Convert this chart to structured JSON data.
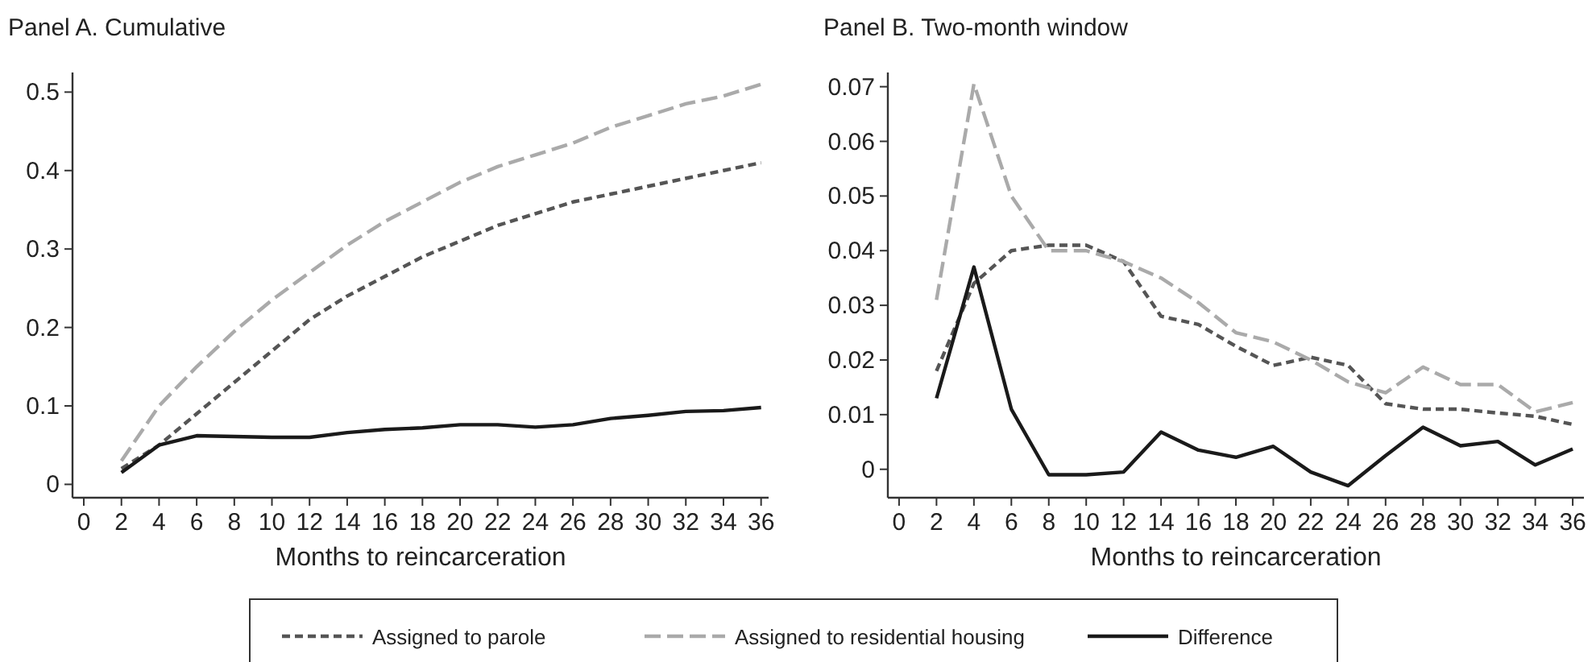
{
  "chart_data": [
    {
      "type": "line",
      "title": "Panel A. Cumulative",
      "xlabel": "Months to reincarceration",
      "x": [
        2,
        4,
        6,
        8,
        10,
        12,
        14,
        16,
        18,
        20,
        22,
        24,
        26,
        28,
        30,
        32,
        34,
        36
      ],
      "series": [
        {
          "name": "Assigned to parole",
          "color": "#555555",
          "line_style": "dashed",
          "values": [
            0.02,
            0.05,
            0.09,
            0.13,
            0.17,
            0.21,
            0.24,
            0.265,
            0.29,
            0.31,
            0.33,
            0.345,
            0.36,
            0.37,
            0.38,
            0.39,
            0.4,
            0.41
          ]
        },
        {
          "name": "Assigned to residential housing",
          "color": "#aaaaaa",
          "line_style": "dashed",
          "values": [
            0.03,
            0.1,
            0.15,
            0.195,
            0.235,
            0.27,
            0.305,
            0.335,
            0.36,
            0.385,
            0.405,
            0.42,
            0.435,
            0.455,
            0.47,
            0.485,
            0.495,
            0.51
          ]
        },
        {
          "name": "Difference",
          "color": "#1a1a1a",
          "line_style": "solid",
          "values": [
            0.015,
            0.05,
            0.062,
            0.061,
            0.06,
            0.06,
            0.066,
            0.07,
            0.072,
            0.076,
            0.076,
            0.073,
            0.076,
            0.084,
            0.088,
            0.093,
            0.094,
            0.098
          ]
        }
      ],
      "xlim": [
        -0.6,
        36.4
      ],
      "ylim": [
        -0.017,
        0.525
      ],
      "xticks": [
        0,
        2,
        4,
        6,
        8,
        10,
        12,
        14,
        16,
        18,
        20,
        22,
        24,
        26,
        28,
        30,
        32,
        34,
        36
      ],
      "yticks": [
        0,
        0.1,
        0.2,
        0.3,
        0.4,
        0.5
      ],
      "grid": false,
      "legend": "bottom"
    },
    {
      "type": "line",
      "title": "Panel B. Two-month window",
      "xlabel": "Months to reincarceration",
      "x": [
        2,
        4,
        6,
        8,
        10,
        12,
        14,
        16,
        18,
        20,
        22,
        24,
        26,
        28,
        30,
        32,
        34,
        36
      ],
      "series": [
        {
          "color": "#555555",
          "line_style": "dashed",
          "values": [
            0.018,
            0.034,
            0.04,
            0.041,
            0.041,
            0.038,
            0.028,
            0.0265,
            0.0225,
            0.019,
            0.0205,
            0.019,
            0.012,
            0.011,
            0.011,
            0.0103,
            0.0097,
            0.0082
          ]
        },
        {
          "color": "#aaaaaa",
          "line_style": "dashed",
          "values": [
            0.031,
            0.0705,
            0.05,
            0.04,
            0.04,
            0.038,
            0.035,
            0.0305,
            0.025,
            0.0233,
            0.02,
            0.016,
            0.014,
            0.0187,
            0.0155,
            0.0155,
            0.0105,
            0.0122
          ]
        },
        {
          "color": "#1a1a1a",
          "line_style": "solid",
          "values": [
            0.013,
            0.037,
            0.011,
            -0.001,
            -0.001,
            -0.0005,
            0.0068,
            0.0035,
            0.0022,
            0.0042,
            -0.0005,
            -0.003,
            0.0025,
            0.0077,
            0.0043,
            0.0051,
            0.0008,
            0.0037
          ]
        }
      ],
      "xlim": [
        -0.6,
        36.6
      ],
      "ylim": [
        -0.0052,
        0.0726
      ],
      "xticks": [
        0,
        2,
        4,
        6,
        8,
        10,
        12,
        14,
        16,
        18,
        20,
        22,
        24,
        26,
        28,
        30,
        32,
        34,
        36
      ],
      "yticks": [
        0,
        0.01,
        0.02,
        0.03,
        0.04,
        0.05,
        0.06,
        0.07
      ],
      "grid": false
    }
  ]
}
